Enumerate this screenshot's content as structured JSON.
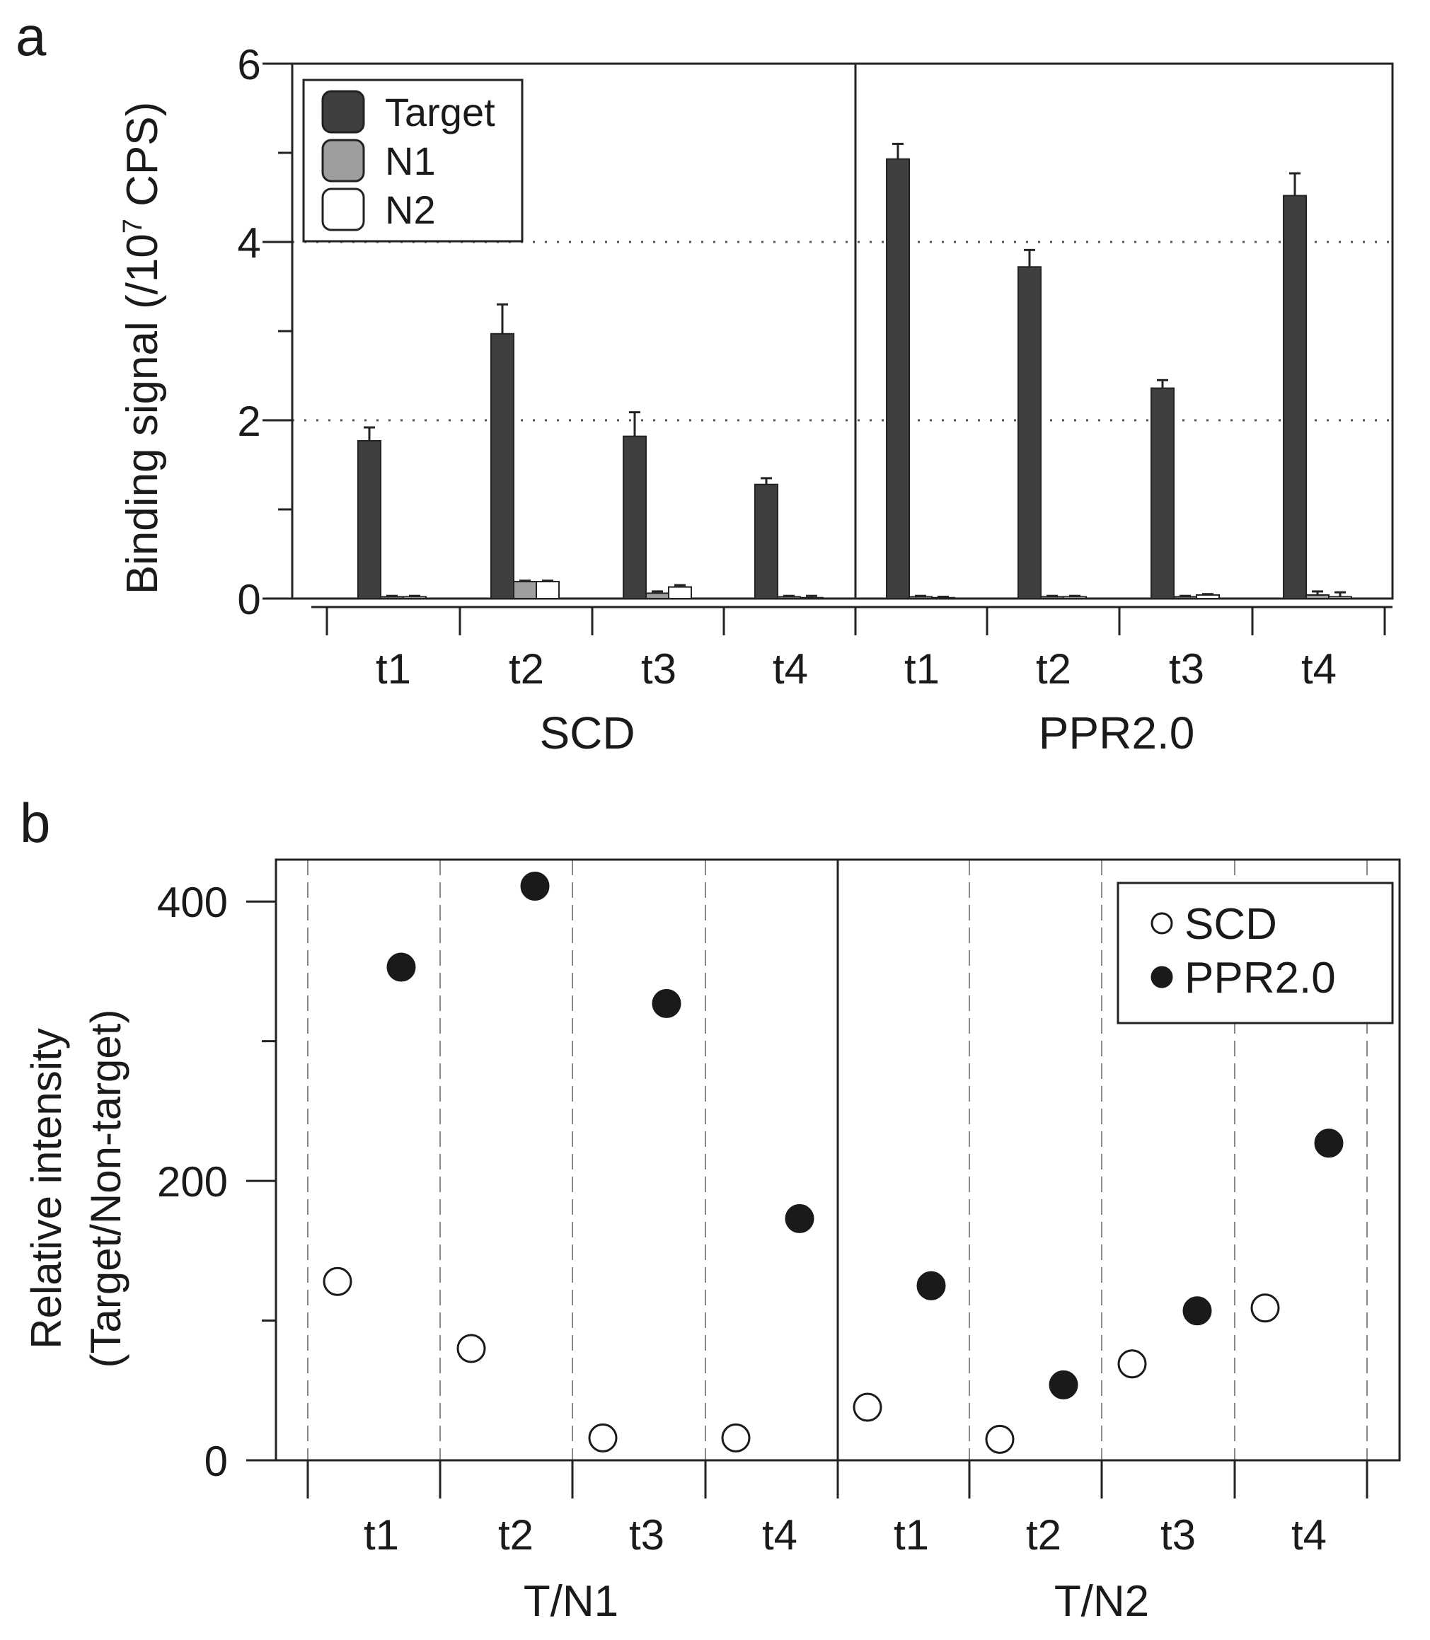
{
  "figure": {
    "panel_a_label": "a",
    "panel_b_label": "b"
  },
  "chart_data": [
    {
      "type": "bar",
      "panel": "a",
      "ylabel_main": "Binding signal (/10",
      "ylabel_exp": "7",
      "ylabel_tail": " CPS)",
      "ylim": [
        0,
        6
      ],
      "yticks": [
        "0",
        "2",
        "4",
        "6"
      ],
      "grid": "dotted horizontal at 2 and 4",
      "legend_position": "top-left",
      "groups": [
        {
          "name": "SCD",
          "categories": [
            "t1",
            "t2",
            "t3",
            "t4"
          ]
        },
        {
          "name": "PPR2.0",
          "categories": [
            "t1",
            "t2",
            "t3",
            "t4"
          ]
        }
      ],
      "series": [
        {
          "name": "Target",
          "color": "#3f3f3f",
          "values": [
            1.77,
            2.97,
            1.82,
            1.28,
            4.93,
            3.72,
            2.36,
            4.52
          ],
          "errors": [
            0.15,
            0.33,
            0.27,
            0.07,
            0.17,
            0.19,
            0.09,
            0.25
          ]
        },
        {
          "name": "N1",
          "color": "#9e9e9e",
          "values": [
            0.02,
            0.19,
            0.06,
            0.02,
            0.02,
            0.02,
            0.02,
            0.04
          ],
          "errors": [
            0.01,
            0.01,
            0.02,
            0.01,
            0.01,
            0.01,
            0.01,
            0.04
          ]
        },
        {
          "name": "N2",
          "color": "#ffffff",
          "values": [
            0.02,
            0.19,
            0.13,
            0.01,
            0.01,
            0.02,
            0.04,
            0.02
          ],
          "errors": [
            0.01,
            0.01,
            0.02,
            0.02,
            0.01,
            0.01,
            0.01,
            0.05
          ]
        }
      ]
    },
    {
      "type": "scatter",
      "panel": "b",
      "ylabel_line1": "Relative intensity",
      "ylabel_line2": "(Target/Non-target)",
      "ylim": [
        0,
        430
      ],
      "yticks": [
        "0",
        "200",
        "400"
      ],
      "grid": "dashed vertical separators",
      "legend_position": "top-right",
      "groups": [
        {
          "name": "T/N1",
          "categories": [
            "t1",
            "t2",
            "t3",
            "t4"
          ]
        },
        {
          "name": "T/N2",
          "categories": [
            "t1",
            "t2",
            "t3",
            "t4"
          ]
        }
      ],
      "series": [
        {
          "name": "SCD",
          "marker": "open-circle",
          "values": [
            128,
            80,
            16,
            16,
            38,
            15,
            69,
            109
          ]
        },
        {
          "name": "PPR2.0",
          "marker": "filled-circle",
          "values": [
            353,
            411,
            327,
            173,
            125,
            54,
            107,
            227
          ]
        }
      ]
    }
  ]
}
